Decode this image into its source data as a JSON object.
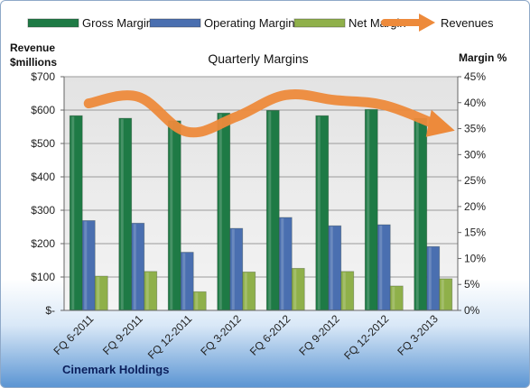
{
  "chart_data": {
    "type": "bar",
    "title": "Quarterly Margins",
    "ylabel_left": [
      "Revenue",
      "$millions"
    ],
    "ylabel_right": "Margin %",
    "footer": "Cinemark Holdings",
    "categories": [
      "FQ 6-2011",
      "FQ 9-2011",
      "FQ 12-2011",
      "FQ 3-2012",
      "FQ 6-2012",
      "FQ 9-2012",
      "FQ 12-2012",
      "FQ 3-2013"
    ],
    "left_axis": {
      "ticks": [
        "$-",
        "$100",
        "$200",
        "$300",
        "$400",
        "$500",
        "$600",
        "$700"
      ],
      "ylim": [
        0,
        700
      ]
    },
    "right_axis": {
      "ticks": [
        "0%",
        "5%",
        "10%",
        "15%",
        "20%",
        "25%",
        "30%",
        "35%",
        "40%",
        "45%"
      ],
      "ylim": [
        0,
        45
      ]
    },
    "series": [
      {
        "name": "Gross Margin",
        "type": "bar",
        "axis": "right",
        "color": "#1e7a45",
        "values": [
          37.5,
          37.0,
          36.5,
          38.0,
          38.5,
          37.5,
          38.7,
          37.0
        ]
      },
      {
        "name": "Operating Margin",
        "type": "bar",
        "axis": "right",
        "color": "#4a6fb0",
        "values": [
          17.3,
          16.8,
          11.2,
          15.8,
          17.9,
          16.3,
          16.5,
          12.3
        ]
      },
      {
        "name": "Net Margin",
        "type": "bar",
        "axis": "right",
        "color": "#8fb04a",
        "values": [
          6.6,
          7.5,
          3.6,
          7.4,
          8.1,
          7.5,
          4.7,
          6.1
        ]
      },
      {
        "name": "Revenues",
        "type": "line",
        "axis": "left",
        "color": "#ed8a3b",
        "values": [
          620,
          640,
          535,
          580,
          645,
          630,
          615,
          560
        ]
      }
    ],
    "grid": true,
    "legend": "top"
  }
}
